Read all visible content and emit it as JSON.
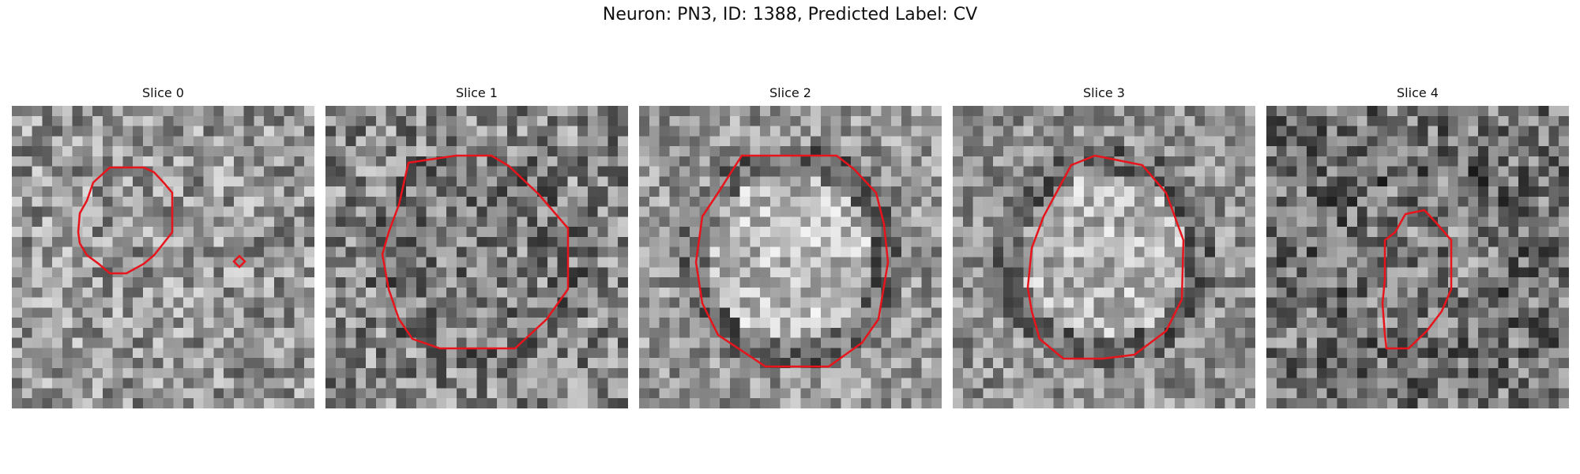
{
  "figure": {
    "title": "Neuron: PN3, ID: 1388, Predicted Label: CV"
  },
  "colors": {
    "contour": "#e8141b"
  },
  "panels": [
    {
      "title": "Slice 0",
      "image_brightness": "mixed, bright center-right"
    },
    {
      "title": "Slice 1",
      "image_brightness": "mixed"
    },
    {
      "title": "Slice 2",
      "image_brightness": "bright center, dark ring"
    },
    {
      "title": "Slice 3",
      "image_brightness": "bright center, dark ring"
    },
    {
      "title": "Slice 4",
      "image_brightness": "dark"
    }
  ]
}
